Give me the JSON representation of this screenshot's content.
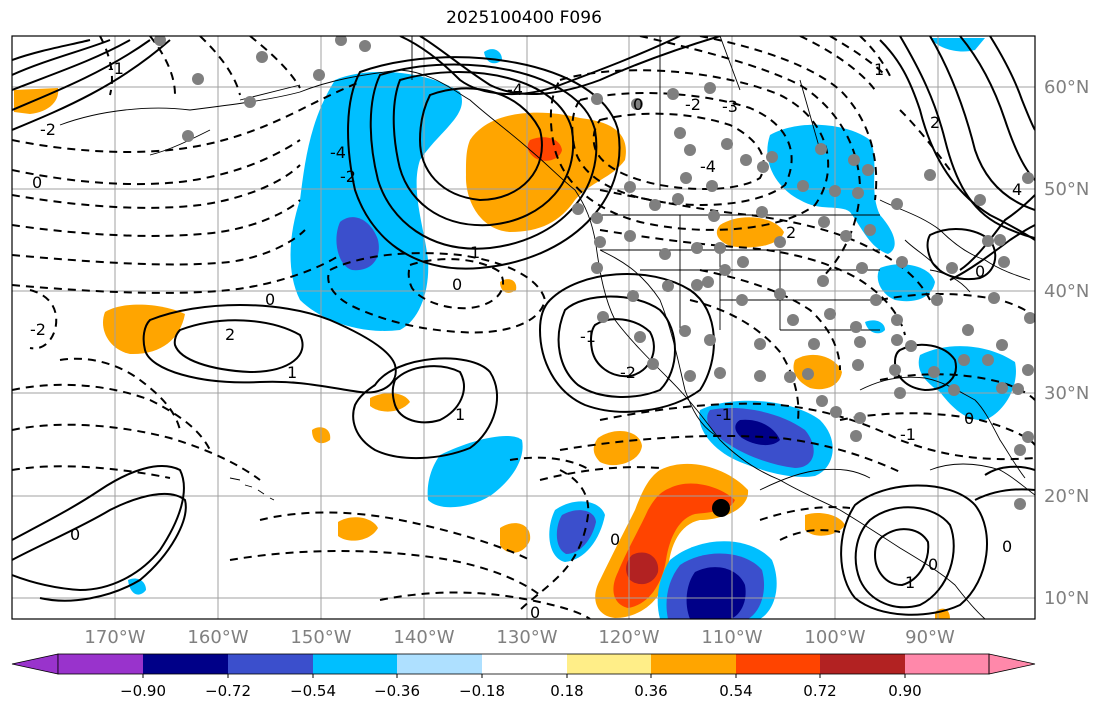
{
  "title": "2025100400 F096",
  "map": {
    "lat_labels": [
      "60°N",
      "50°N",
      "40°N",
      "30°N",
      "20°N",
      "10°N"
    ],
    "lon_labels": [
      "170°W",
      "160°W",
      "150°W",
      "140°W",
      "130°W",
      "120°W",
      "110°W",
      "100°W",
      "90°W"
    ],
    "contour_labels": [
      {
        "text": "-4"
      },
      {
        "text": "-4"
      },
      {
        "text": "-4"
      },
      {
        "text": "-2"
      },
      {
        "text": "-2"
      },
      {
        "text": "0"
      },
      {
        "text": "0"
      },
      {
        "text": "0"
      },
      {
        "text": "0"
      },
      {
        "text": "0"
      },
      {
        "text": "0"
      },
      {
        "text": "-2"
      },
      {
        "text": "2"
      },
      {
        "text": "1"
      },
      {
        "text": "-1"
      },
      {
        "text": "-1"
      },
      {
        "text": "1"
      },
      {
        "text": "-2"
      },
      {
        "text": "-1"
      },
      {
        "text": "0"
      },
      {
        "text": "1"
      },
      {
        "text": "2"
      },
      {
        "text": "-3"
      },
      {
        "text": "2"
      },
      {
        "text": "4"
      },
      {
        "text": "1"
      },
      {
        "text": "0"
      },
      {
        "text": "-1"
      },
      {
        "text": "-2"
      },
      {
        "text": "1"
      },
      {
        "text": "0"
      },
      {
        "text": "0"
      },
      {
        "text": "0"
      }
    ]
  },
  "colorbar": {
    "colors": [
      "#9933cc",
      "#000088",
      "#3b4fcc",
      "#00bfff",
      "#aee0ff",
      "#ffffff",
      "#ffee88",
      "#ffa500",
      "#ff4400",
      "#b22222",
      "#ff88aa"
    ],
    "tick_labels": [
      "−0.90",
      "−0.72",
      "−0.54",
      "−0.36",
      "−0.18",
      "0.18",
      "0.36",
      "0.54",
      "0.72",
      "0.90"
    ]
  },
  "fills": {
    "dark_blue": "#000088",
    "blue": "#3b4fcc",
    "cyan": "#00bfff",
    "orange": "#ffa500",
    "red_orange": "#ff4400",
    "dark_red": "#b22222"
  }
}
